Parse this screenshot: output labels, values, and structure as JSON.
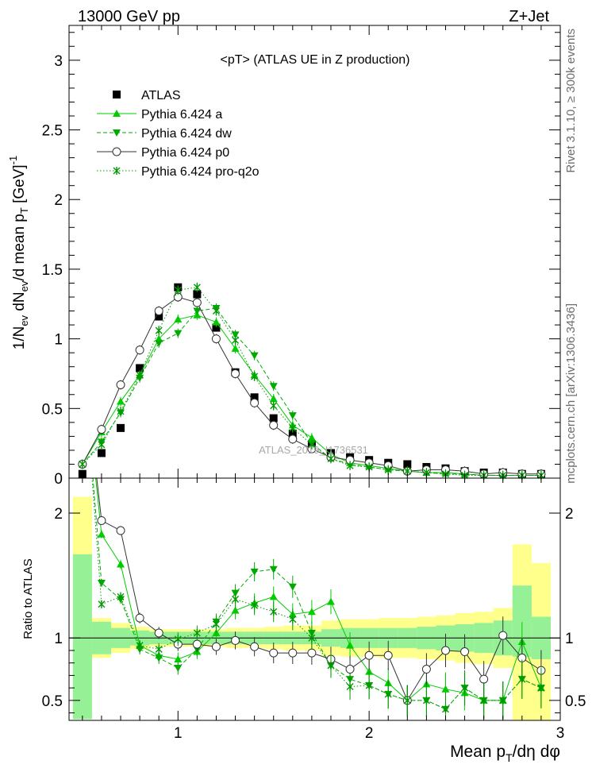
{
  "header": {
    "left": "13000 GeV pp",
    "right": "Z+Jet"
  },
  "side": {
    "rivet": "Rivet 3.1.10, ≥ 300k events",
    "mcplots": "mcplots.cern.ch [arXiv:1306.3436]"
  },
  "chart_data": [
    {
      "type": "line",
      "title": "<pT> (ATLAS UE in Z production)",
      "ylabel": "1/N_ev dN_ev/d mean p_T [GeV]^-1",
      "xlabel": "Mean p_T/dη dφ",
      "watermark": "ATLAS_2019_I1736531",
      "xlim": [
        0.43,
        3.0
      ],
      "ylim": [
        0,
        3.25
      ],
      "xticks": [
        "1",
        "2",
        "3"
      ],
      "yticks": [
        "0",
        "0.5",
        "1",
        "1.5",
        "2",
        "2.5",
        "3"
      ],
      "legend_position": "top-left",
      "x": [
        0.5,
        0.6,
        0.7,
        0.8,
        0.9,
        1.0,
        1.1,
        1.2,
        1.3,
        1.4,
        1.5,
        1.6,
        1.7,
        1.8,
        1.9,
        2.0,
        2.1,
        2.2,
        2.3,
        2.4,
        2.5,
        2.6,
        2.7,
        2.8,
        2.9
      ],
      "series": [
        {
          "name": "ATLAS",
          "color": "#000000",
          "marker": "square",
          "values": [
            0.03,
            0.18,
            0.36,
            0.79,
            1.16,
            1.37,
            1.32,
            1.08,
            0.76,
            0.58,
            0.43,
            0.32,
            0.24,
            0.18,
            0.15,
            0.13,
            0.11,
            0.1,
            0.08,
            0.07,
            0.05,
            0.04,
            0.04,
            0.03,
            0.03
          ]
        },
        {
          "name": "Pythia 6.424 a",
          "color": "#00cc00",
          "marker": "triangle-up",
          "dash": "solid",
          "values": [
            0.1,
            0.33,
            0.55,
            0.74,
            1.0,
            1.14,
            1.17,
            1.12,
            0.93,
            0.74,
            0.57,
            0.38,
            0.29,
            0.17,
            0.11,
            0.09,
            0.07,
            0.05,
            0.04,
            0.04,
            0.03,
            0.02,
            0.02,
            0.02,
            0.02
          ]
        },
        {
          "name": "Pythia 6.424 dw",
          "color": "#00aa00",
          "marker": "triangle-down",
          "dash": "dashed",
          "values": [
            0.1,
            0.26,
            0.47,
            0.72,
            0.97,
            1.04,
            1.2,
            1.22,
            1.03,
            0.88,
            0.66,
            0.45,
            0.25,
            0.14,
            0.1,
            0.08,
            0.06,
            0.05,
            0.04,
            0.03,
            0.03,
            0.02,
            0.02,
            0.02,
            0.02
          ]
        },
        {
          "name": "Pythia 6.424 p0",
          "color": "#000000",
          "marker": "circle-open",
          "dash": "solid",
          "stroke": "#333333",
          "values": [
            0.1,
            0.35,
            0.67,
            0.92,
            1.2,
            1.3,
            1.26,
            1.0,
            0.75,
            0.54,
            0.38,
            0.28,
            0.21,
            0.15,
            0.13,
            0.11,
            0.09,
            0.05,
            0.06,
            0.06,
            0.05,
            0.03,
            0.04,
            0.03,
            0.03
          ]
        },
        {
          "name": "Pythia 6.424 pro-q2o",
          "color": "#009900",
          "marker": "star",
          "dash": "dotted",
          "values": [
            0.1,
            0.24,
            0.48,
            0.74,
            1.06,
            1.35,
            1.37,
            1.2,
            0.99,
            0.73,
            0.52,
            0.36,
            0.24,
            0.14,
            0.09,
            0.08,
            0.06,
            0.05,
            0.04,
            0.03,
            0.02,
            0.02,
            0.02,
            0.02,
            0.02
          ]
        }
      ]
    },
    {
      "type": "line",
      "ylabel": "Ratio to ATLAS",
      "xlabel": "Mean p_T/dη dφ",
      "xlim": [
        0.43,
        3.0
      ],
      "ylim": [
        0.34,
        2.28
      ],
      "yticks": [
        "0.5",
        "1",
        "2"
      ],
      "x": [
        0.5,
        0.6,
        0.7,
        0.8,
        0.9,
        1.0,
        1.1,
        1.2,
        1.3,
        1.4,
        1.5,
        1.6,
        1.7,
        1.8,
        1.9,
        2.0,
        2.1,
        2.2,
        2.3,
        2.4,
        2.5,
        2.6,
        2.7,
        2.8,
        2.9
      ],
      "band_inner": {
        "lower": [
          0.35,
          0.87,
          0.92,
          0.94,
          0.95,
          0.95,
          0.95,
          0.95,
          0.95,
          0.95,
          0.95,
          0.95,
          0.95,
          0.93,
          0.92,
          0.92,
          0.92,
          0.92,
          0.91,
          0.9,
          0.89,
          0.88,
          0.86,
          0.85,
          0.83
        ],
        "upper": [
          1.67,
          1.13,
          1.08,
          1.06,
          1.05,
          1.05,
          1.05,
          1.05,
          1.05,
          1.05,
          1.05,
          1.05,
          1.05,
          1.07,
          1.08,
          1.08,
          1.08,
          1.08,
          1.09,
          1.1,
          1.11,
          1.12,
          1.14,
          1.42,
          1.17
        ]
      },
      "band_outer": {
        "lower": [
          0.35,
          0.84,
          0.88,
          0.91,
          0.93,
          0.93,
          0.93,
          0.93,
          0.92,
          0.92,
          0.91,
          0.9,
          0.9,
          0.86,
          0.85,
          0.85,
          0.84,
          0.84,
          0.83,
          0.82,
          0.8,
          0.79,
          0.76,
          0.34,
          0.34
        ],
        "upper": [
          2.13,
          1.16,
          1.12,
          1.09,
          1.07,
          1.07,
          1.07,
          1.07,
          1.08,
          1.08,
          1.09,
          1.1,
          1.1,
          1.14,
          1.15,
          1.15,
          1.16,
          1.16,
          1.17,
          1.18,
          1.2,
          1.21,
          1.24,
          1.75,
          1.6
        ]
      },
      "series": [
        {
          "name": "Pythia 6.424 a",
          "values": [
            3.3,
            1.83,
            1.59,
            0.94,
            0.86,
            0.83,
            0.89,
            1.04,
            1.22,
            1.28,
            1.33,
            1.19,
            1.21,
            1.29,
            0.94,
            0.73,
            0.64,
            0.5,
            0.63,
            0.59,
            0.56,
            0.5,
            0.5,
            0.97,
            0.6
          ]
        },
        {
          "name": "Pythia 6.424 dw",
          "values": [
            3.3,
            1.44,
            1.31,
            0.91,
            0.84,
            0.76,
            0.91,
            1.13,
            1.36,
            1.53,
            1.55,
            1.41,
            1.04,
            0.78,
            0.67,
            0.62,
            0.55,
            0.5,
            0.5,
            0.43,
            0.6,
            0.5,
            0.5,
            0.67,
            0.6
          ]
        },
        {
          "name": "Pythia 6.424 p0",
          "values": [
            3.3,
            1.94,
            1.86,
            1.16,
            1.04,
            0.95,
            0.95,
            0.93,
            0.98,
            0.93,
            0.88,
            0.88,
            0.88,
            0.83,
            0.75,
            0.86,
            0.86,
            0.5,
            0.75,
            0.9,
            0.89,
            0.67,
            1.02,
            0.84,
            0.74
          ]
        },
        {
          "name": "Pythia 6.424 pro-q2o",
          "values": [
            3.3,
            1.27,
            1.33,
            0.94,
            0.91,
            0.99,
            1.04,
            1.11,
            1.31,
            1.26,
            1.21,
            1.15,
            1.0,
            0.78,
            0.61,
            0.62,
            0.55,
            0.5,
            0.5,
            0.43,
            0.6,
            0.5,
            0.5,
            0.67,
            0.6
          ]
        }
      ]
    }
  ]
}
